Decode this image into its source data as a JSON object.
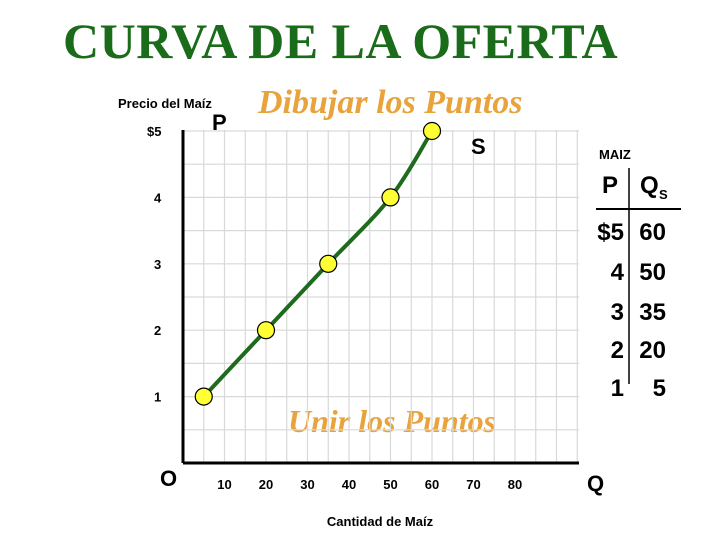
{
  "title": "CURVA DE LA OFERTA",
  "subtitle": "Dibujar los Puntos",
  "instruction": "Unir los Puntos",
  "colors": {
    "title": "#1a6b1a",
    "curve": "#1e6b1e",
    "annotation": "#e8a33c",
    "point_fill": "#ffff33",
    "grid": "#d9d9d9"
  },
  "chart_data": {
    "type": "line",
    "title": "CURVA DE LA OFERTA",
    "ylabel": "Precio del Maíz",
    "xlabel": "Cantidad de Maíz",
    "y_axis_letter": "P",
    "x_axis_letter": "Q",
    "origin_label": "O",
    "series_label": "S",
    "x_ticks": [
      "10",
      "20",
      "30",
      "40",
      "50",
      "60",
      "70",
      "80"
    ],
    "y_ticks": [
      "1",
      "2",
      "3",
      "4",
      "$5"
    ],
    "xlim": [
      0,
      95
    ],
    "ylim": [
      0,
      5.5
    ],
    "grid": true,
    "series": [
      {
        "name": "S",
        "x": [
          5,
          20,
          35,
          50,
          60
        ],
        "y": [
          1,
          2,
          3,
          4,
          5
        ]
      }
    ]
  },
  "table": {
    "label": "MAIZ",
    "col_p": "P",
    "col_q": "Q",
    "col_q_sub": "S",
    "rows": [
      {
        "p": "$5",
        "q": "60"
      },
      {
        "p": "4",
        "q": "50"
      },
      {
        "p": "3",
        "q": "35"
      },
      {
        "p": "2",
        "q": "20"
      },
      {
        "p": "1",
        "q": "5"
      }
    ]
  }
}
